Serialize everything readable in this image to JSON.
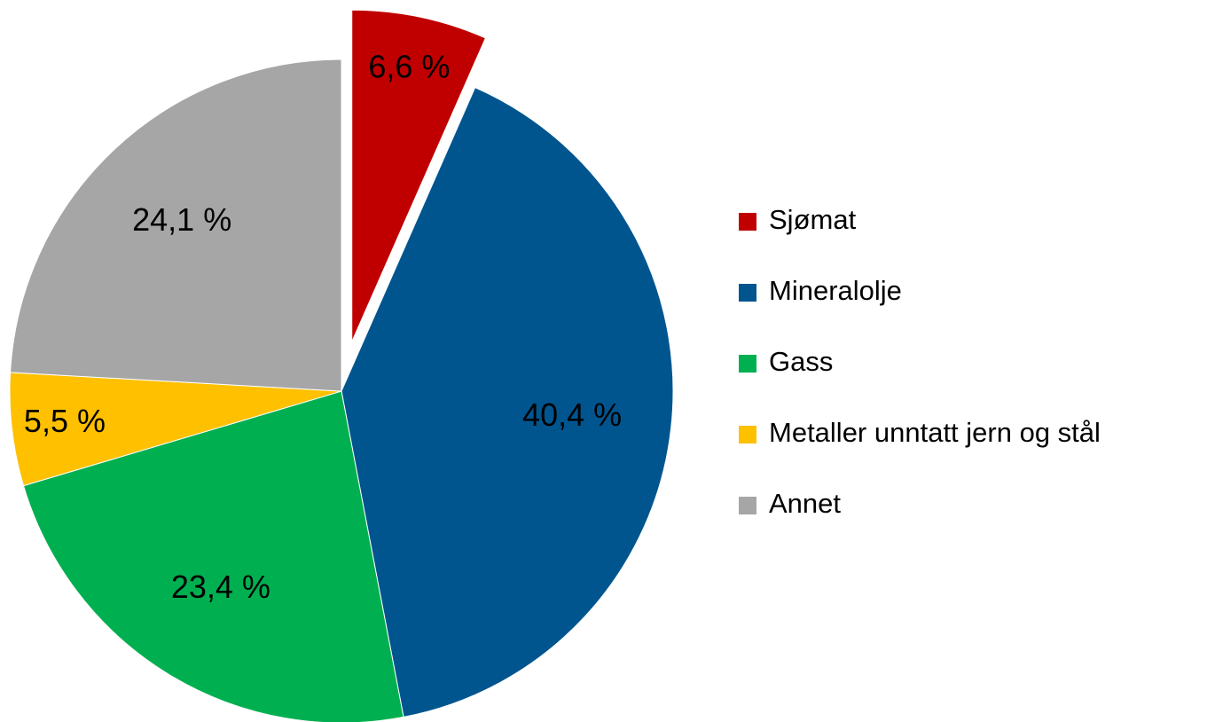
{
  "chart_data": {
    "type": "pie",
    "categories": [
      "Sjømat",
      "Mineralolje",
      "Gass",
      "Metaller unntatt jern og stål",
      "Annet"
    ],
    "values": [
      6.6,
      40.4,
      23.4,
      5.5,
      24.1
    ],
    "value_labels": [
      "6,6 %",
      "40,4 %",
      "23,4 %",
      "5,5 %",
      "24,1 %"
    ],
    "colors": [
      "#c00000",
      "#00558f",
      "#00b050",
      "#ffc000",
      "#a6a6a6"
    ],
    "legend": "right"
  }
}
